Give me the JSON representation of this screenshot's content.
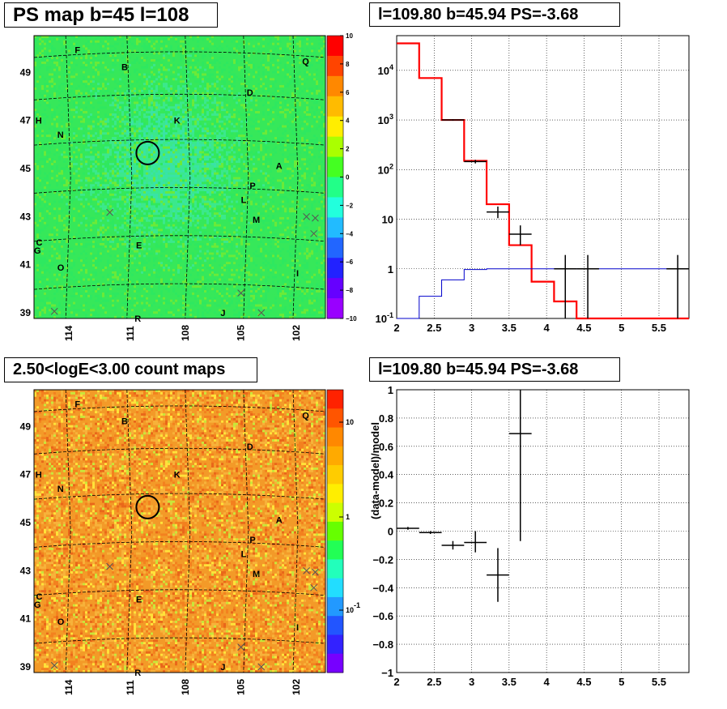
{
  "panels": {
    "map_top": {
      "title": "PS map b=45 l=108",
      "x_ticks": [
        "114",
        "111",
        "108",
        "105",
        "102"
      ],
      "y_ticks": [
        "49",
        "47",
        "45",
        "43",
        "41",
        "39"
      ],
      "colorbar_ticks": [
        "10",
        "8",
        "6",
        "4",
        "2",
        "0",
        "−2",
        "−4",
        "−6",
        "−8",
        "−10"
      ],
      "source_labels": [
        "F",
        "B",
        "Q",
        "D",
        "H",
        "K",
        "N",
        "A",
        "P",
        "L",
        "M",
        "C",
        "G",
        "E",
        "O",
        "I",
        "J",
        "R"
      ]
    },
    "spectrum": {
      "title": "l=109.80 b=45.94 PS=-3.68",
      "x_ticks": [
        "2",
        "2.5",
        "3",
        "3.5",
        "4",
        "4.5",
        "5",
        "5.5"
      ],
      "y_ticks": [
        "10^4",
        "10^3",
        "10^2",
        "10",
        "1",
        "10^-1"
      ]
    },
    "map_bottom": {
      "title": "2.50<logE<3.00 count maps",
      "x_ticks": [
        "114",
        "111",
        "108",
        "105",
        "102"
      ],
      "y_ticks": [
        "49",
        "47",
        "45",
        "43",
        "41",
        "39"
      ],
      "colorbar_ticks": [
        "10",
        "1",
        "10^-1"
      ]
    },
    "residual": {
      "title": "l=109.80 b=45.94 PS=-3.68",
      "ylabel": "(data-model)/model",
      "x_ticks": [
        "2",
        "2.5",
        "3",
        "3.5",
        "4",
        "4.5",
        "5",
        "5.5"
      ],
      "y_ticks": [
        "1",
        "0.8",
        "0.6",
        "0.4",
        "0.2",
        "0",
        "−0.2",
        "−0.4",
        "−0.6",
        "−0.8",
        "−1"
      ]
    }
  },
  "colors": {
    "map_top_base": "#2ee84a",
    "map_bottom_base": "#f39a28",
    "model_line": "#ff0000",
    "background_line": "#0000cc",
    "data": "#000000"
  },
  "chart_data": [
    {
      "type": "heatmap",
      "title": "PS map b=45 l=108",
      "xlabel": "",
      "ylabel": "",
      "xlim": [
        116,
        100
      ],
      "ylim": [
        38.7,
        50.3
      ],
      "zlim": [
        -10,
        10
      ],
      "grid": true,
      "description_values": "mostly uniform 0 to 1 with slight cyan patches",
      "circle_marker": {
        "l": 109.8,
        "b": 45.6
      }
    },
    {
      "type": "line",
      "title": "l=109.80 b=45.94 PS=-3.68",
      "xlabel": "",
      "ylabel": "",
      "xlim": [
        2,
        5.9
      ],
      "ylim": [
        0.1,
        50000
      ],
      "yscale": "log",
      "grid": true,
      "series": [
        {
          "kind": "step",
          "color": "#ff0000",
          "edges": [
            2.0,
            2.3,
            2.6,
            2.9,
            3.2,
            3.5,
            3.8,
            4.1,
            4.4,
            4.7,
            5.0,
            5.3,
            5.6,
            5.9
          ],
          "values": [
            35000,
            7000,
            1000,
            150,
            20,
            3,
            0.55,
            0.22,
            0.1,
            0.1,
            0.1,
            0.1,
            0.1
          ]
        },
        {
          "kind": "step",
          "color": "#0000cc",
          "edges": [
            2.0,
            2.3,
            2.6,
            2.9,
            3.2,
            3.5,
            3.8,
            4.1,
            4.4,
            4.7,
            5.0,
            5.3,
            5.6,
            5.9
          ],
          "values": [
            0.05,
            0.28,
            0.6,
            0.97,
            1.0,
            1.0,
            1.0,
            1.0,
            1.0,
            1.0,
            1.0,
            1.0,
            1.0
          ]
        },
        {
          "kind": "errorbars",
          "color": "#000000",
          "points": [
            {
              "x": 2.75,
              "y": 1000,
              "xerr": 0.15,
              "ylo": 970,
              "yhi": 1030
            },
            {
              "x": 3.05,
              "y": 145,
              "xerr": 0.15,
              "ylo": 133,
              "yhi": 157
            },
            {
              "x": 3.35,
              "y": 14,
              "xerr": 0.15,
              "ylo": 10.5,
              "yhi": 18
            },
            {
              "x": 3.65,
              "y": 5,
              "xerr": 0.15,
              "ylo": 3,
              "yhi": 7.5
            },
            {
              "x": 4.25,
              "y": 1,
              "xerr": 0.15,
              "ylo": 0.1,
              "yhi": 1.9
            },
            {
              "x": 4.55,
              "y": 1,
              "xerr": 0.15,
              "ylo": 0.1,
              "yhi": 1.9
            },
            {
              "x": 5.75,
              "y": 1,
              "xerr": 0.15,
              "ylo": 0.1,
              "yhi": 1.9
            }
          ]
        }
      ]
    },
    {
      "type": "heatmap",
      "title": "2.50<logE<3.00 count maps",
      "xlabel": "",
      "ylabel": "",
      "xlim": [
        116,
        100
      ],
      "ylim": [
        38.7,
        50.3
      ],
      "zscale": "log",
      "zlim": [
        0.02,
        30
      ],
      "grid": true,
      "circle_marker": {
        "l": 109.8,
        "b": 45.6
      }
    },
    {
      "type": "scatter",
      "title": "l=109.80 b=45.94 PS=-3.68",
      "xlabel": "",
      "ylabel": "(data-model)/model",
      "xlim": [
        2,
        5.9
      ],
      "ylim": [
        -1,
        1
      ],
      "grid": true,
      "points": [
        {
          "x": 2.15,
          "y": 0.02,
          "xerr": 0.15,
          "ylo": 0.01,
          "yhi": 0.03
        },
        {
          "x": 2.45,
          "y": -0.01,
          "xerr": 0.15,
          "ylo": -0.02,
          "yhi": 0.0
        },
        {
          "x": 2.75,
          "y": -0.1,
          "xerr": 0.15,
          "ylo": -0.13,
          "yhi": -0.07
        },
        {
          "x": 3.05,
          "y": -0.08,
          "xerr": 0.15,
          "ylo": -0.15,
          "yhi": -0.0
        },
        {
          "x": 3.35,
          "y": -0.31,
          "xerr": 0.15,
          "ylo": -0.5,
          "yhi": -0.12
        },
        {
          "x": 3.65,
          "y": 0.69,
          "xerr": 0.15,
          "ylo": -0.07,
          "yhi": 1.0
        }
      ]
    }
  ]
}
